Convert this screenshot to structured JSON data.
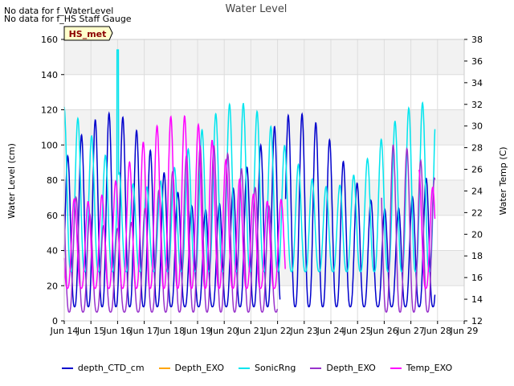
{
  "notes": [
    "No data for f_WaterLevel",
    "No data for f_HS Staff Gauge"
  ],
  "badge": "HS_met",
  "chart_data": {
    "type": "line",
    "title": "Water Level",
    "xlabel": "",
    "ylabel": "Water Level (cm)",
    "y2label": "Water Temp (C)",
    "xlim": [
      14,
      29
    ],
    "ylim": [
      0,
      160
    ],
    "y2lim": [
      12,
      38
    ],
    "x_ticks": [
      14,
      15,
      16,
      17,
      18,
      19,
      20,
      21,
      22,
      23,
      24,
      25,
      26,
      27,
      28,
      29
    ],
    "x_tick_labels": [
      "Jun 14",
      "Jun 15",
      "Jun 16",
      "Jun 17",
      "Jun 18",
      "Jun 19",
      "Jun 20",
      "Jun 21",
      "Jun 22",
      "Jun 23",
      "Jun 24",
      "Jun 25",
      "Jun 26",
      "Jun 27",
      "Jun 28",
      "Jun 29"
    ],
    "y_ticks": [
      0,
      20,
      40,
      60,
      80,
      100,
      120,
      140,
      160
    ],
    "y2_ticks": [
      12,
      14,
      16,
      18,
      20,
      22,
      24,
      26,
      28,
      30,
      32,
      34,
      36,
      38
    ],
    "grid": true,
    "legend_position": "bottom",
    "series": [
      {
        "name": "depth_CTD_cm",
        "color": "#0000cc",
        "axis": "left",
        "x_start": 14.0,
        "x_end": 27.9,
        "base": 8,
        "amp": 110,
        "gap": [
          22.1,
          22.3
        ]
      },
      {
        "name": "Depth_EXO",
        "color": "#ffa500",
        "axis": "left",
        "x_start": 0,
        "x_end": 0
      },
      {
        "name": "SonicRng",
        "color": "#00e5ee",
        "axis": "left",
        "x_start": 14.0,
        "x_end": 27.9,
        "base": 28,
        "amp": 96,
        "spike": [
          16.0,
          154
        ]
      },
      {
        "name": "Depth_EXO",
        "color": "#9932cc",
        "axis": "left",
        "x_start": 14.0,
        "x_end": 27.9,
        "base": 5,
        "amp": 95,
        "gap": [
          22.0,
          25.9
        ]
      },
      {
        "name": "Temp_EXO",
        "color": "#ff00ff",
        "axis": "right",
        "x_start": 14.0,
        "x_end": 27.9,
        "base": 15,
        "amp": 16,
        "gap": [
          22.3,
          27.3
        ]
      }
    ]
  }
}
